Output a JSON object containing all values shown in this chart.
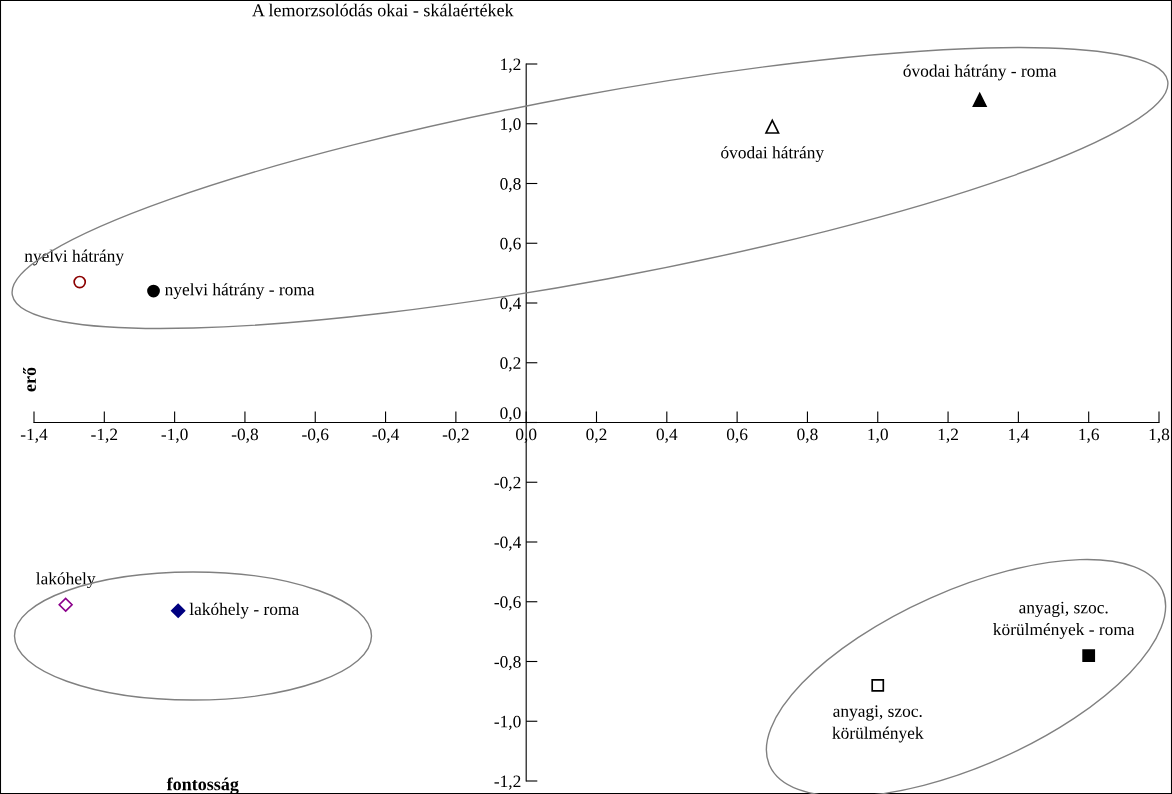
{
  "chart_data": {
    "type": "scatter",
    "title": "A lemorzsolódás okai - skálaértékek",
    "xlabel": "fontosság",
    "ylabel": "erő",
    "xlim": [
      -1.4,
      1.8
    ],
    "ylim": [
      -1.2,
      1.2
    ],
    "xticks": [
      {
        "value": -1.4,
        "label": "-1,4"
      },
      {
        "value": -1.2,
        "label": "-1,2"
      },
      {
        "value": -1.0,
        "label": "-1,0"
      },
      {
        "value": -0.8,
        "label": "-0,8"
      },
      {
        "value": -0.6,
        "label": "-0,6"
      },
      {
        "value": -0.4,
        "label": "-0,4"
      },
      {
        "value": -0.2,
        "label": "-0,2"
      },
      {
        "value": 0.0,
        "label": "0,0"
      },
      {
        "value": 0.2,
        "label": "0,2"
      },
      {
        "value": 0.4,
        "label": "0,4"
      },
      {
        "value": 0.6,
        "label": "0,6"
      },
      {
        "value": 0.8,
        "label": "0,8"
      },
      {
        "value": 1.0,
        "label": "1,0"
      },
      {
        "value": 1.2,
        "label": "1,2"
      },
      {
        "value": 1.4,
        "label": "1,4"
      },
      {
        "value": 1.6,
        "label": "1,6"
      },
      {
        "value": 1.8,
        "label": "1,8"
      }
    ],
    "yticks": [
      {
        "value": -1.2,
        "label": "-1,2"
      },
      {
        "value": -1.0,
        "label": "-1,0"
      },
      {
        "value": -0.8,
        "label": "-0,8"
      },
      {
        "value": -0.6,
        "label": "-0,6"
      },
      {
        "value": -0.4,
        "label": "-0,4"
      },
      {
        "value": -0.2,
        "label": "-0,2"
      },
      {
        "value": 0.0,
        "label": "0,0"
      },
      {
        "value": 0.2,
        "label": "0,2"
      },
      {
        "value": 0.4,
        "label": "0,4"
      },
      {
        "value": 0.6,
        "label": "0,6"
      },
      {
        "value": 0.8,
        "label": "0,8"
      },
      {
        "value": 1.0,
        "label": "1,0"
      },
      {
        "value": 1.2,
        "label": "1,2"
      }
    ],
    "grid": false,
    "legend": false,
    "series": [
      {
        "name": "nyelvi hátrány",
        "color": "#8b0000",
        "colors": [
          "#ffffff"
        ],
        "marker": "circle",
        "x": [
          -1.27
        ],
        "values": [
          0.47
        ]
      },
      {
        "name": "nyelvi hátrány - roma",
        "color": "#000000",
        "colors": [
          "#000000"
        ],
        "marker": "circle",
        "x": [
          -1.06
        ],
        "values": [
          0.44
        ]
      },
      {
        "name": "óvodai hátrány",
        "color": "#000000",
        "colors": [
          "#ffffff"
        ],
        "marker": "triangle",
        "x": [
          0.7
        ],
        "values": [
          0.99
        ]
      },
      {
        "name": "óvodai hátrány - roma",
        "color": "#000000",
        "colors": [
          "#000000"
        ],
        "marker": "triangle",
        "x": [
          1.29
        ],
        "values": [
          1.08
        ]
      },
      {
        "name": "lakóhely",
        "color": "#8b008b",
        "colors": [
          "#ffffff"
        ],
        "marker": "diamond",
        "x": [
          -1.31
        ],
        "values": [
          -0.61
        ]
      },
      {
        "name": "lakóhely - roma",
        "color": "#000080",
        "colors": [
          "#000080"
        ],
        "marker": "diamond",
        "x": [
          -0.99
        ],
        "values": [
          -0.63
        ]
      },
      {
        "name": "anyagi, szoc.\nkörülmények",
        "color": "#000000",
        "colors": [
          "#ffffff"
        ],
        "marker": "square",
        "x": [
          1.0
        ],
        "values": [
          -0.88
        ]
      },
      {
        "name": "anyagi, szoc.\nkörülmények - roma",
        "color": "#000000",
        "colors": [
          "#000000"
        ],
        "marker": "square",
        "x": [
          1.6
        ],
        "values": [
          -0.78
        ]
      }
    ]
  }
}
